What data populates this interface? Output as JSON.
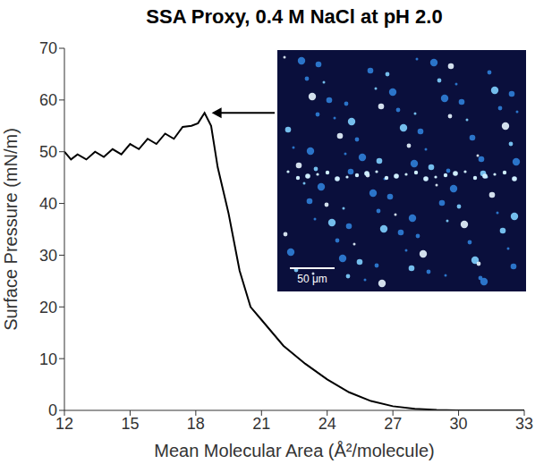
{
  "chart_data": {
    "type": "line",
    "title": "SSA Proxy, 0.4 M NaCl at pH 2.0",
    "x_label": "Mean Molecular Area (Å²/molecule)",
    "y_label": "Surface Pressure (mN/m)",
    "x": [
      12,
      12.3,
      12.6,
      13,
      13.4,
      13.8,
      14.2,
      14.6,
      15,
      15.4,
      15.8,
      16.2,
      16.6,
      17,
      17.4,
      17.8,
      18.1,
      18.4,
      18.7,
      19,
      19.5,
      20,
      20.5,
      21,
      22,
      23,
      24,
      25,
      26,
      27,
      28,
      29,
      30,
      31,
      32,
      33
    ],
    "values": [
      50,
      48.5,
      49.5,
      48.5,
      50,
      49,
      50.5,
      49.5,
      51.5,
      50.5,
      52.5,
      51.5,
      53.5,
      52.5,
      54.8,
      55,
      55.5,
      57.5,
      55,
      47,
      38,
      27,
      20,
      17.5,
      12.5,
      9,
      6,
      3.5,
      1.8,
      0.8,
      0.3,
      0.1,
      0,
      0,
      0,
      0
    ],
    "color": "#000000",
    "xlim": [
      12,
      33
    ],
    "xticks": [
      12,
      15,
      18,
      21,
      24,
      27,
      30,
      33
    ],
    "ylim": [
      0,
      70
    ],
    "yticks": [
      0,
      10,
      20,
      30,
      40,
      50,
      60,
      70
    ],
    "grid": false,
    "inset_scale_bar": "50 μm"
  }
}
